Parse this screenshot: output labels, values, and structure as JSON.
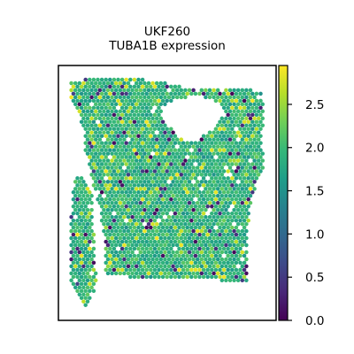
{
  "chart_data": {
    "type": "scatter",
    "title_lines": [
      "UKF260",
      "TUBA1B expression"
    ],
    "xlabel": "",
    "ylabel": "",
    "grid": false,
    "colorbar": {
      "colormap": "viridis",
      "min": 0.0,
      "max": 2.95,
      "ticks": [
        0.0,
        0.5,
        1.0,
        1.5,
        2.0,
        2.5
      ],
      "tick_labels": [
        "0.0",
        "0.5",
        "1.0",
        "1.5",
        "2.0",
        "2.5"
      ]
    },
    "spots_summary": {
      "layout": "hexagonal Visium spot grid",
      "typical_value_range": [
        1.4,
        2.4
      ],
      "low_value_fraction": 0.05,
      "high_value_fraction": 0.08
    }
  }
}
